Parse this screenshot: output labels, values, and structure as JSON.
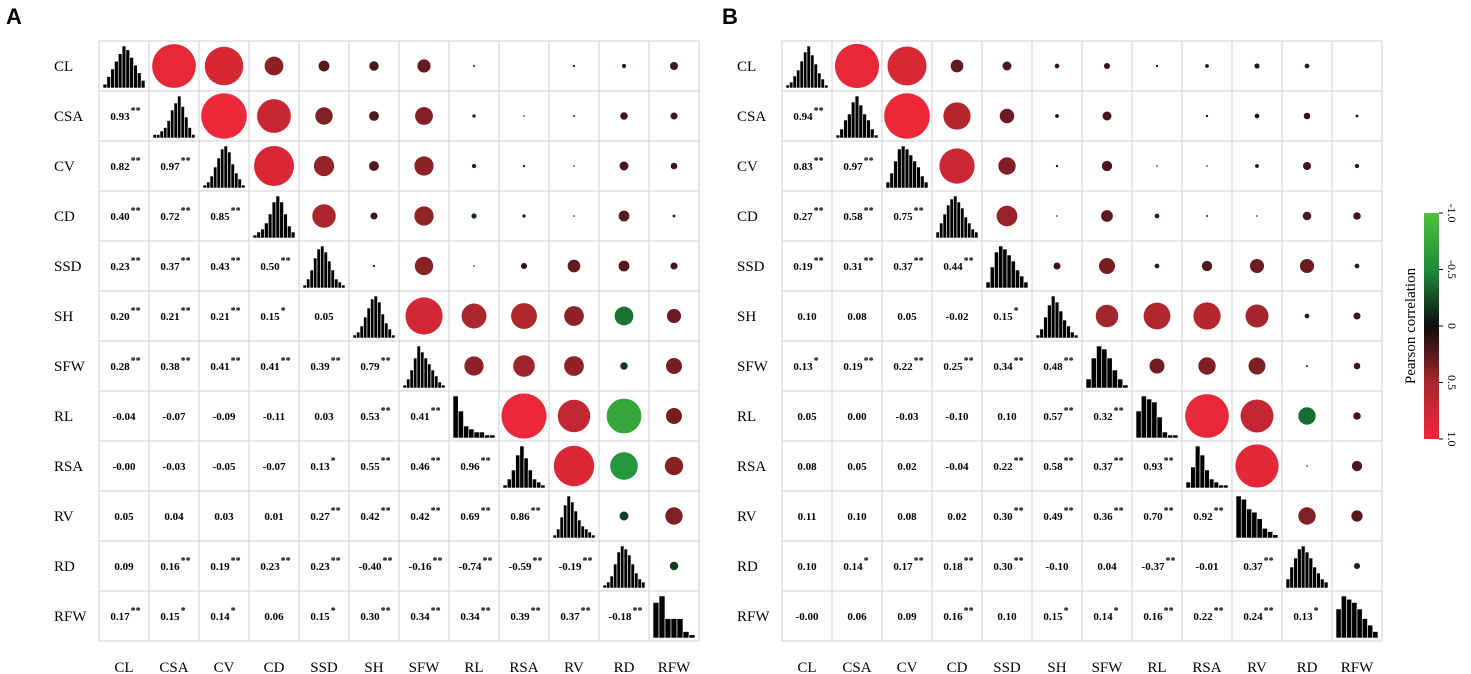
{
  "chart_data": [
    {
      "type": "heatmap",
      "subtype": "correlation_matrix",
      "panel": "A",
      "title": "",
      "variables": [
        "CL",
        "CSA",
        "CV",
        "CD",
        "SSD",
        "SH",
        "SFW",
        "RL",
        "RSA",
        "RV",
        "RD",
        "RFW"
      ],
      "lower_values": [
        [
          "0.93"
        ],
        [
          "0.82",
          "0.97"
        ],
        [
          "0.40",
          "0.72",
          "0.85"
        ],
        [
          "0.23",
          "0.37",
          "0.43",
          "0.50"
        ],
        [
          "0.20",
          "0.21",
          "0.21",
          "0.15",
          "0.05"
        ],
        [
          "0.28",
          "0.38",
          "0.41",
          "0.41",
          "0.39",
          "0.79"
        ],
        [
          "-0.04",
          "-0.07",
          "-0.09",
          "-0.11",
          "0.03",
          "0.53",
          "0.41"
        ],
        [
          "-0.00",
          "-0.03",
          "-0.05",
          "-0.07",
          "0.13",
          "0.55",
          "0.46",
          "0.96"
        ],
        [
          "0.05",
          "0.04",
          "0.03",
          "0.01",
          "0.27",
          "0.42",
          "0.42",
          "0.69",
          "0.86"
        ],
        [
          "0.09",
          "0.16",
          "0.19",
          "0.23",
          "0.23",
          "-0.40",
          "-0.16",
          "-0.74",
          "-0.59",
          "-0.19"
        ],
        [
          "0.17",
          "0.15",
          "0.14",
          "0.06",
          "0.15",
          "0.30",
          "0.34",
          "0.34",
          "0.39",
          "0.37",
          "-0.18"
        ]
      ],
      "significance": [
        [
          "**"
        ],
        [
          "**",
          "**"
        ],
        [
          "**",
          "**",
          "**"
        ],
        [
          "**",
          "**",
          "**",
          "**"
        ],
        [
          "**",
          "**",
          "**",
          "*",
          ""
        ],
        [
          "**",
          "**",
          "**",
          "**",
          "**",
          "**"
        ],
        [
          "",
          "",
          "",
          "",
          "",
          "**",
          "**"
        ],
        [
          "",
          "",
          "",
          "",
          "*",
          "**",
          "**",
          "**"
        ],
        [
          "",
          "",
          "",
          "",
          "**",
          "**",
          "**",
          "**",
          "**"
        ],
        [
          "",
          "**",
          "**",
          "**",
          "**",
          "**",
          "**",
          "**",
          "**",
          "**"
        ],
        [
          "**",
          "*",
          "*",
          "",
          "*",
          "**",
          "**",
          "**",
          "**",
          "**",
          "**"
        ]
      ],
      "histograms": [
        [
          1,
          3,
          5,
          7,
          9,
          11,
          10,
          8,
          6,
          4,
          2
        ],
        [
          1,
          1,
          2,
          3,
          5,
          8,
          10,
          12,
          9,
          6,
          3,
          1
        ],
        [
          1,
          2,
          4,
          7,
          10,
          13,
          14,
          12,
          8,
          5,
          3,
          1
        ],
        [
          1,
          2,
          3,
          5,
          8,
          12,
          14,
          12,
          8,
          4,
          2
        ],
        [
          1,
          3,
          6,
          10,
          13,
          14,
          12,
          9,
          6,
          3,
          2,
          1
        ],
        [
          1,
          2,
          4,
          7,
          10,
          13,
          14,
          12,
          8,
          5,
          3,
          1
        ],
        [
          1,
          3,
          6,
          10,
          14,
          12,
          10,
          8,
          6,
          4,
          2,
          1
        ],
        [
          14,
          9,
          4,
          3,
          2,
          2,
          1,
          1
        ],
        [
          1,
          3,
          6,
          11,
          14,
          10,
          6,
          3,
          2,
          1
        ],
        [
          1,
          3,
          7,
          11,
          14,
          12,
          9,
          6,
          4,
          3,
          2,
          1
        ],
        [
          1,
          2,
          4,
          8,
          12,
          14,
          13,
          11,
          8,
          5,
          3,
          2
        ],
        [
          11,
          13,
          6,
          6,
          6,
          2,
          1
        ]
      ]
    },
    {
      "type": "heatmap",
      "subtype": "correlation_matrix",
      "panel": "B",
      "title": "",
      "variables": [
        "CL",
        "CSA",
        "CV",
        "CD",
        "SSD",
        "SH",
        "SFW",
        "RL",
        "RSA",
        "RV",
        "RD",
        "RFW"
      ],
      "lower_values": [
        [
          "0.94"
        ],
        [
          "0.83",
          "0.97"
        ],
        [
          "0.27",
          "0.58",
          "0.75"
        ],
        [
          "0.19",
          "0.31",
          "0.37",
          "0.44"
        ],
        [
          "0.10",
          "0.08",
          "0.05",
          "-0.02",
          "0.15"
        ],
        [
          "0.13",
          "0.19",
          "0.22",
          "0.25",
          "0.34",
          "0.48"
        ],
        [
          "0.05",
          "0.00",
          "-0.03",
          "-0.10",
          "0.10",
          "0.57",
          "0.32"
        ],
        [
          "0.08",
          "0.05",
          "0.02",
          "-0.04",
          "0.22",
          "0.58",
          "0.37",
          "0.93"
        ],
        [
          "0.11",
          "0.10",
          "0.08",
          "0.02",
          "0.30",
          "0.49",
          "0.36",
          "0.70",
          "0.92"
        ],
        [
          "0.10",
          "0.14",
          "0.17",
          "0.18",
          "0.30",
          "-0.10",
          "0.04",
          "-0.37",
          "-0.01",
          "0.37"
        ],
        [
          "-0.00",
          "0.06",
          "0.09",
          "0.16",
          "0.10",
          "0.15",
          "0.14",
          "0.16",
          "0.22",
          "0.24",
          "0.13"
        ]
      ],
      "significance": [
        [
          "**"
        ],
        [
          "**",
          "**"
        ],
        [
          "**",
          "**",
          "**"
        ],
        [
          "**",
          "**",
          "**",
          "**"
        ],
        [
          "",
          "",
          "",
          "",
          "*"
        ],
        [
          "*",
          "**",
          "**",
          "**",
          "**",
          "**"
        ],
        [
          "",
          "",
          "",
          "",
          "",
          "**",
          "**"
        ],
        [
          "",
          "",
          "",
          "",
          "**",
          "**",
          "**",
          "**"
        ],
        [
          "",
          "",
          "",
          "",
          "**",
          "**",
          "**",
          "**",
          "**"
        ],
        [
          "",
          "*",
          "**",
          "**",
          "**",
          "",
          "",
          "**",
          "",
          "**"
        ],
        [
          "",
          "",
          "",
          "**",
          "",
          "*",
          "*",
          "**",
          "**",
          "**",
          "*"
        ]
      ],
      "histograms": [
        [
          1,
          2,
          4,
          6,
          9,
          12,
          14,
          11,
          8,
          5,
          3,
          1
        ],
        [
          1,
          3,
          6,
          8,
          12,
          14,
          11,
          8,
          6,
          3,
          1
        ],
        [
          2,
          5,
          9,
          13,
          14,
          13,
          11,
          9,
          7,
          4,
          2
        ],
        [
          2,
          5,
          8,
          11,
          13,
          14,
          12,
          10,
          7,
          5,
          3,
          2
        ],
        [
          2,
          7,
          12,
          14,
          13,
          11,
          9,
          6,
          4,
          2
        ],
        [
          1,
          3,
          7,
          11,
          14,
          12,
          9,
          6,
          4,
          2,
          1
        ],
        [
          3,
          10,
          14,
          13,
          10,
          6,
          3,
          1
        ],
        [
          9,
          14,
          13,
          12,
          7,
          2,
          1,
          1
        ],
        [
          2,
          7,
          14,
          11,
          6,
          3,
          2,
          1,
          1
        ],
        [
          13,
          12,
          9,
          8,
          6,
          3,
          2,
          1
        ],
        [
          3,
          7,
          10,
          13,
          14,
          12,
          10,
          7,
          5,
          3,
          2
        ],
        [
          9,
          13,
          12,
          11,
          9,
          6,
          4,
          2
        ]
      ]
    }
  ],
  "colorbar": {
    "title": "Pearson correlation",
    "tick_labels": [
      "-1.0",
      "-0.5",
      "0",
      "0.5",
      "1.0"
    ],
    "tick_values": [
      -1.0,
      -0.5,
      0,
      0.5,
      1.0
    ],
    "colors": {
      "neg_strong": "#4cc23d",
      "neg_mid": "#1e8c3a",
      "zero": "#0d0d0d",
      "pos_mid": "#a8262c",
      "pos_strong": "#f0283a"
    }
  }
}
